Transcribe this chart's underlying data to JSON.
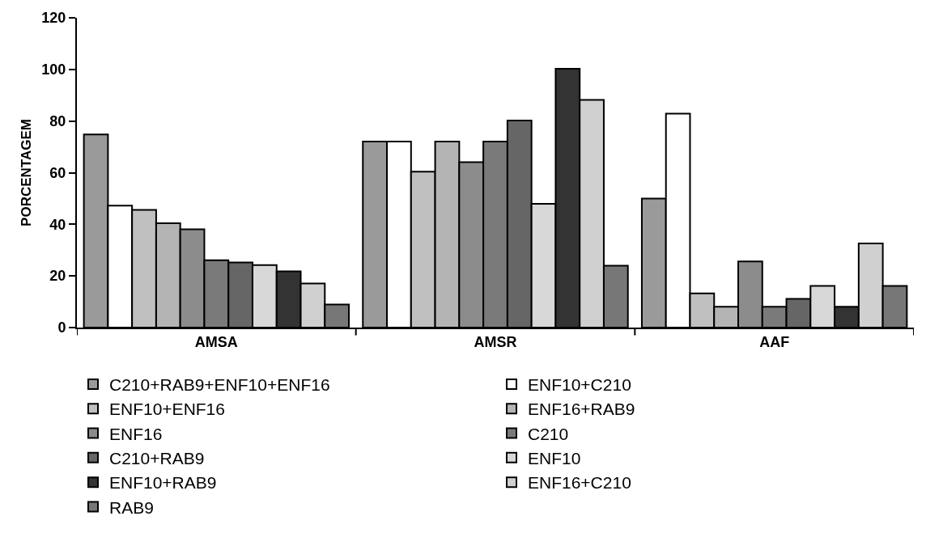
{
  "chart_data": {
    "type": "bar",
    "ylabel": "PORCENTAGEM",
    "categories": [
      "AMSA",
      "AMSR",
      "AAF"
    ],
    "ylim": [
      0,
      120
    ],
    "yticks": [
      0,
      20,
      40,
      60,
      80,
      100,
      120
    ],
    "grid": false,
    "legend": "bottom",
    "series": [
      {
        "name": "C210+RAB9+ENF10+ENF16",
        "color": "#9a9a9a",
        "values": [
          74.8,
          72.1,
          50.0
        ]
      },
      {
        "name": "ENF10+C210",
        "color": "#ffffff",
        "values": [
          47.2,
          72.1,
          82.9
        ]
      },
      {
        "name": "ENF10+ENF16",
        "color": "#c0c0c0",
        "values": [
          45.6,
          60.4,
          13.2
        ]
      },
      {
        "name": "ENF16+RAB9",
        "color": "#b4b4b4",
        "values": [
          40.4,
          72.1,
          8.1
        ]
      },
      {
        "name": "ENF16",
        "color": "#8c8c8c",
        "values": [
          38.1,
          64.1,
          25.6
        ]
      },
      {
        "name": "C210",
        "color": "#7a7a7a",
        "values": [
          26.1,
          72.1,
          8.1
        ]
      },
      {
        "name": "C210+RAB9",
        "color": "#666666",
        "values": [
          25.2,
          80.2,
          11.1
        ]
      },
      {
        "name": "ENF10",
        "color": "#d8d8d8",
        "values": [
          24.2,
          47.9,
          16.1
        ]
      },
      {
        "name": "ENF10+RAB9",
        "color": "#333333",
        "values": [
          21.8,
          100.3,
          8.1
        ]
      },
      {
        "name": "ENF16+C210",
        "color": "#d0d0d0",
        "values": [
          17.1,
          88.2,
          32.6
        ]
      },
      {
        "name": "RAB9",
        "color": "#777777",
        "values": [
          8.9,
          24.0,
          16.1
        ]
      }
    ]
  }
}
